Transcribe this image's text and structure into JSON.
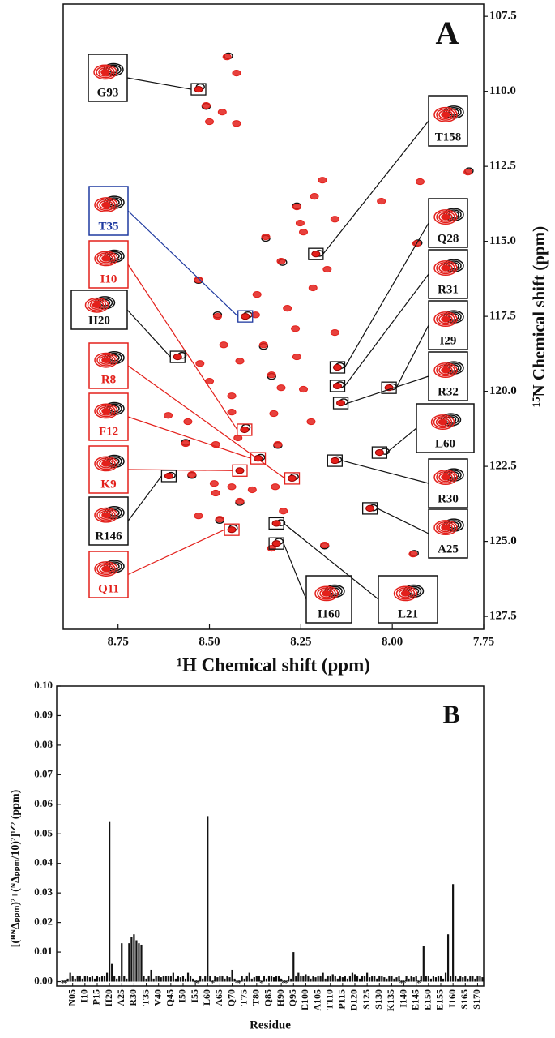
{
  "chart_data": [
    {
      "type": "scatter",
      "label": "A",
      "xlabel": "¹H Chemical shift (ppm)",
      "ylabel": "¹⁵N Chemical shift (ppm)",
      "xlim": [
        8.9,
        7.75
      ],
      "ylim": [
        127.93,
        107.09
      ],
      "xticks": [
        8.75,
        {
          "value": 8.5,
          "label": "8.50"
        },
        8.25,
        {
          "value": 8,
          "label": "8.00"
        },
        7.75
      ],
      "yticks": [
        107.5,
        {
          "value": 110,
          "label": "110.0"
        },
        112.5,
        {
          "value": 115,
          "label": "115.0"
        },
        117.5,
        {
          "value": 120,
          "label": "120.0"
        },
        122.5,
        {
          "value": 125,
          "label": "125.0"
        },
        127.5
      ],
      "series": [
        {
          "color": "#111111",
          "x": [
            8.525,
            8.395,
            8.4,
            8.575,
            8.268,
            8.36,
            8.605,
            8.435,
            8.2,
            8.143,
            8.143,
            8.0,
            8.133,
            8.02,
            8.15,
            8.052,
            8.31,
            8.305,
            8.448,
            8.509,
            8.261,
            8.346,
            8.3,
            8.53,
            8.478,
            8.352,
            8.33,
            8.565,
            8.313,
            8.548,
            8.417,
            8.472,
            8.185,
            7.93,
            7.79,
            7.94
          ],
          "values": [
            109.85,
            117.45,
            121.2,
            118.8,
            122.85,
            122.2,
            122.8,
            124.55,
            115.4,
            119.15,
            119.78,
            119.85,
            120.35,
            122.0,
            122.28,
            123.88,
            125.0,
            124.38,
            108.82,
            110.5,
            113.82,
            114.9,
            115.7,
            116.3,
            117.45,
            118.5,
            119.5,
            121.7,
            121.8,
            122.8,
            123.7,
            124.3,
            125.15,
            115.05,
            112.65,
            125.4
          ]
        },
        {
          "color": "#e3201b",
          "x": [
            8.452,
            8.426,
            8.509,
            8.465,
            8.5,
            8.426,
            8.191,
            8.213,
            8.261,
            8.157,
            8.252,
            8.346,
            8.243,
            8.304,
            8.178,
            8.53,
            8.217,
            8.37,
            8.478,
            8.287,
            8.374,
            8.265,
            8.157,
            8.461,
            8.352,
            8.261,
            8.526,
            8.417,
            8.33,
            8.5,
            8.304,
            8.243,
            8.439,
            8.613,
            8.559,
            8.439,
            8.324,
            8.222,
            8.565,
            8.483,
            8.422,
            8.313,
            8.548,
            8.487,
            8.439,
            8.383,
            8.32,
            8.483,
            8.417,
            8.298,
            8.53,
            8.472,
            8.185,
            8.33,
            7.933,
            7.924,
            7.793,
            7.943,
            8.03
          ],
          "values": [
            108.85,
            109.39,
            110.47,
            110.69,
            111.01,
            111.07,
            112.96,
            113.5,
            113.85,
            114.26,
            114.39,
            114.85,
            114.69,
            115.66,
            115.93,
            116.28,
            116.55,
            116.77,
            117.5,
            117.23,
            117.45,
            117.91,
            118.04,
            118.45,
            118.45,
            118.85,
            119.07,
            118.99,
            119.45,
            119.66,
            119.88,
            119.93,
            120.15,
            120.8,
            121.01,
            120.69,
            120.74,
            121.01,
            121.74,
            121.77,
            121.55,
            121.77,
            122.77,
            123.07,
            123.18,
            123.28,
            123.18,
            123.39,
            123.66,
            123.99,
            124.15,
            124.26,
            125.12,
            125.23,
            115.07,
            113.01,
            112.69,
            125.42,
            113.66
          ]
        }
      ],
      "annotations": [
        {
          "label": "G93",
          "color": "#111111",
          "x": 8.53,
          "y": 109.93
        },
        {
          "label": "T35",
          "color": "#1f3aa0",
          "x": 8.402,
          "y": 117.5
        },
        {
          "label": "I10",
          "color": "#e3201b",
          "x": 8.404,
          "y": 121.28
        },
        {
          "label": "H20",
          "color": "#111111",
          "x": 8.587,
          "y": 118.85
        },
        {
          "label": "R8",
          "color": "#e3201b",
          "x": 8.274,
          "y": 122.9
        },
        {
          "label": "F12",
          "color": "#e3201b",
          "x": 8.367,
          "y": 122.23
        },
        {
          "label": "K9",
          "color": "#e3201b",
          "x": 8.417,
          "y": 122.64
        },
        {
          "label": "R146",
          "color": "#111111",
          "x": 8.611,
          "y": 122.82
        },
        {
          "label": "Q11",
          "color": "#e3201b",
          "x": 8.439,
          "y": 124.61
        },
        {
          "label": "T158",
          "color": "#111111",
          "x": 8.209,
          "y": 115.42
        },
        {
          "label": "Q28",
          "color": "#111111",
          "x": 8.15,
          "y": 119.2
        },
        {
          "label": "R31",
          "color": "#111111",
          "x": 8.15,
          "y": 119.82
        },
        {
          "label": "I29",
          "color": "#111111",
          "x": 8.009,
          "y": 119.88
        },
        {
          "label": "R32",
          "color": "#111111",
          "x": 8.141,
          "y": 120.39
        },
        {
          "label": "L60",
          "color": "#111111",
          "x": 8.035,
          "y": 122.04
        },
        {
          "label": "R30",
          "color": "#111111",
          "x": 8.157,
          "y": 122.31
        },
        {
          "label": "A25",
          "color": "#111111",
          "x": 8.061,
          "y": 123.9
        },
        {
          "label": "I160",
          "color": "#111111",
          "x": 8.317,
          "y": 125.07
        },
        {
          "label": "L21",
          "color": "#111111",
          "x": 8.317,
          "y": 124.4
        }
      ]
    },
    {
      "type": "bar",
      "label": "B",
      "xlabel": "Residue",
      "ylabel": "[(ᴴᴺΔₚₚₘ)²+(ᴺΔₚₚₘ/10)²]¹ᐟ² (ppm)",
      "color": "#111111",
      "xlim": [
        -1.5,
        172.5
      ],
      "ylim": [
        -0.0015,
        0.1
      ],
      "yticks": [
        {
          "value": 0,
          "label": "0.00"
        },
        0.01,
        0.02,
        0.03,
        0.04,
        0.05,
        0.06,
        0.07,
        0.08,
        0.09,
        {
          "value": 0.1,
          "label": "0.10"
        }
      ],
      "xticks": [
        {
          "value": 5,
          "label": "N05"
        },
        {
          "value": 10,
          "label": "I10"
        },
        {
          "value": 15,
          "label": "P15"
        },
        {
          "value": 20,
          "label": "H20"
        },
        {
          "value": 25,
          "label": "A25"
        },
        {
          "value": 30,
          "label": "R30"
        },
        {
          "value": 35,
          "label": "T35"
        },
        {
          "value": 40,
          "label": "V40"
        },
        {
          "value": 45,
          "label": "Q45"
        },
        {
          "value": 50,
          "label": "I50"
        },
        {
          "value": 55,
          "label": "I55"
        },
        {
          "value": 60,
          "label": "L60"
        },
        {
          "value": 65,
          "label": "A65"
        },
        {
          "value": 70,
          "label": "Q70"
        },
        {
          "value": 75,
          "label": "T75"
        },
        {
          "value": 80,
          "label": "T80"
        },
        {
          "value": 85,
          "label": "Q85"
        },
        {
          "value": 90,
          "label": "H90"
        },
        {
          "value": 95,
          "label": "Q95"
        },
        {
          "value": 100,
          "label": "E100"
        },
        {
          "value": 105,
          "label": "A105"
        },
        {
          "value": 110,
          "label": "T110"
        },
        {
          "value": 115,
          "label": "P115"
        },
        {
          "value": 120,
          "label": "D120"
        },
        {
          "value": 125,
          "label": "S125"
        },
        {
          "value": 130,
          "label": "S130"
        },
        {
          "value": 135,
          "label": "K135"
        },
        {
          "value": 140,
          "label": "I140"
        },
        {
          "value": 145,
          "label": "E145"
        },
        {
          "value": 150,
          "label": "E150"
        },
        {
          "value": 155,
          "label": "E155"
        },
        {
          "value": 160,
          "label": "I160"
        },
        {
          "value": 165,
          "label": "S165"
        },
        {
          "value": 170,
          "label": "S170"
        }
      ],
      "x": [
        3,
        4,
        5,
        6,
        7,
        8,
        9,
        10,
        11,
        12,
        13,
        14,
        15,
        16,
        17,
        18,
        19,
        20,
        21,
        22,
        23,
        24,
        25,
        26,
        27,
        28,
        29,
        30,
        31,
        32,
        33,
        34,
        35,
        36,
        37,
        38,
        39,
        40,
        41,
        42,
        43,
        44,
        45,
        46,
        47,
        48,
        49,
        50,
        51,
        52,
        53,
        54,
        55,
        56,
        57,
        58,
        59,
        60,
        61,
        62,
        63,
        64,
        65,
        66,
        67,
        68,
        69,
        70,
        71,
        72,
        73,
        74,
        75,
        76,
        77,
        78,
        79,
        80,
        81,
        82,
        83,
        84,
        85,
        86,
        87,
        88,
        89,
        90,
        91,
        92,
        93,
        94,
        95,
        96,
        97,
        98,
        99,
        100,
        101,
        102,
        103,
        104,
        105,
        106,
        107,
        108,
        109,
        110,
        111,
        112,
        113,
        114,
        115,
        116,
        117,
        118,
        119,
        120,
        121,
        122,
        123,
        124,
        125,
        126,
        127,
        128,
        129,
        130,
        131,
        132,
        133,
        134,
        135,
        136,
        137,
        138,
        139,
        140,
        141,
        142,
        143,
        144,
        145,
        146,
        147,
        148,
        149,
        150,
        151,
        152,
        153,
        154,
        155,
        156,
        157,
        158,
        159,
        160,
        161,
        162,
        163,
        164,
        165,
        166,
        167,
        168,
        169,
        170,
        171,
        172
      ],
      "values": [
        0.001,
        0.003,
        0.002,
        0.001,
        0.002,
        0.002,
        0.001,
        0.002,
        0.002,
        0.0015,
        0.002,
        0.001,
        0.002,
        0.0015,
        0.002,
        0.002,
        0.003,
        0.054,
        0.006,
        0.002,
        0.001,
        0.002,
        0.013,
        0.002,
        0.001,
        0.013,
        0.015,
        0.016,
        0.014,
        0.013,
        0.0125,
        0.002,
        0.001,
        0.002,
        0.004,
        0.001,
        0.002,
        0.002,
        0.0015,
        0.002,
        0.002,
        0.002,
        0.002,
        0.003,
        0.001,
        0.002,
        0.0015,
        0.002,
        0.001,
        0.003,
        0.002,
        0.001,
        null,
        null,
        0.002,
        0.001,
        0.002,
        0.056,
        0.002,
        null,
        0.002,
        0.0015,
        0.002,
        0.002,
        0.001,
        0.002,
        0.0015,
        0.004,
        0.001,
        null,
        null,
        0.002,
        0.001,
        0.002,
        0.003,
        0.001,
        0.0015,
        0.002,
        0.002,
        null,
        0.002,
        0.001,
        0.002,
        0.002,
        0.0015,
        0.002,
        0.002,
        0.001,
        null,
        null,
        0.002,
        0.001,
        0.01,
        0.002,
        0.003,
        0.002,
        0.002,
        0.0025,
        0.002,
        0.001,
        0.002,
        0.0015,
        0.002,
        0.002,
        0.003,
        0.001,
        0.002,
        0.002,
        0.0025,
        0.002,
        0.001,
        0.002,
        0.0015,
        0.002,
        0.001,
        0.002,
        0.003,
        0.0025,
        0.002,
        0.001,
        0.002,
        0.002,
        0.003,
        0.0015,
        0.002,
        0.002,
        0.001,
        0.002,
        0.002,
        0.0015,
        0.001,
        0.002,
        0.002,
        0.001,
        0.0015,
        0.002,
        null,
        null,
        0.002,
        0.001,
        0.002,
        0.0015,
        0.002,
        null,
        0.002,
        0.012,
        0.002,
        0.002,
        0.001,
        0.002,
        0.0015,
        0.002,
        0.002,
        0.001,
        0.003,
        0.016,
        0.002,
        0.033,
        0.002,
        0.001,
        0.002,
        0.0015,
        0.002,
        0.001,
        0.002,
        0.002,
        0.001,
        0.002,
        0.002,
        0.0015
      ],
      "asterisks": {
        "label": "*",
        "x": [
          1,
          2,
          55,
          56,
          62,
          72,
          73,
          82,
          91,
          92,
          139,
          140,
          146
        ]
      }
    }
  ]
}
